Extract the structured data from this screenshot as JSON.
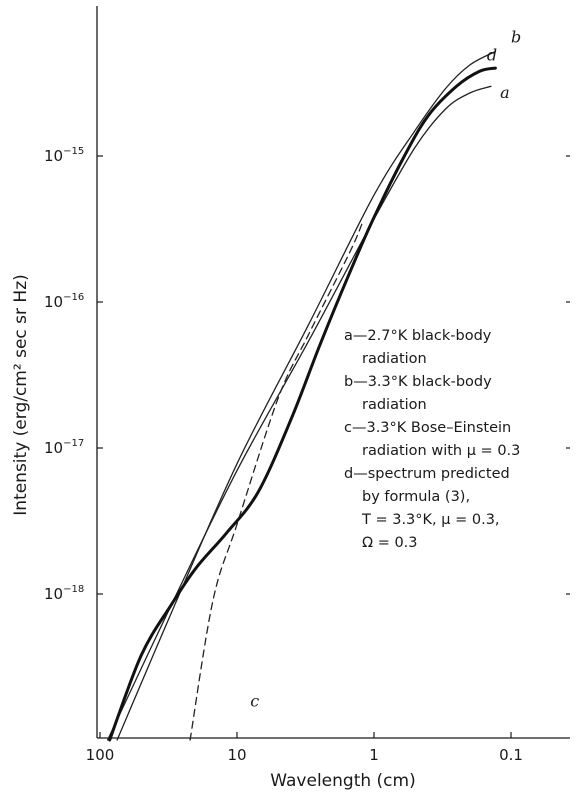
{
  "chart_data": {
    "type": "line",
    "xlabel": "Wavelength  (cm)",
    "ylabel": "Intensity  (erg/cm² sec sr Hz)",
    "x_scale": "log",
    "x_reversed": true,
    "y_scale": "log",
    "xlim": [
      100,
      0.07
    ],
    "ylim": [
      1e-19,
      1e-14
    ],
    "x_ticks": [
      {
        "value": 100,
        "label": "100"
      },
      {
        "value": 10,
        "label": "10"
      },
      {
        "value": 1,
        "label": "1"
      },
      {
        "value": 0.1,
        "label": "0.1"
      }
    ],
    "y_ticks": [
      {
        "value": 1e-15,
        "base": "10",
        "exp": "−15"
      },
      {
        "value": 1e-16,
        "base": "10",
        "exp": "−16"
      },
      {
        "value": 1e-17,
        "base": "10",
        "exp": "−17"
      },
      {
        "value": 1e-18,
        "base": "10",
        "exp": "−18"
      }
    ],
    "grid": false,
    "series": [
      {
        "name": "a",
        "style": "thin",
        "x": [
          88,
          30,
          10,
          3,
          1,
          0.5,
          0.3,
          0.2,
          0.14
        ],
        "y": [
          1e-19,
          8.5e-19,
          7e-18,
          5.4e-17,
          3.7e-16,
          1.15e-15,
          2.1e-15,
          2.7e-15,
          3e-15
        ]
      },
      {
        "name": "b",
        "style": "thin",
        "x": [
          75,
          30,
          10,
          3,
          1,
          0.5,
          0.3,
          0.2,
          0.13
        ],
        "y": [
          1e-19,
          7.5e-19,
          7.8e-18,
          7e-17,
          5.4e-16,
          1.5e-15,
          2.9e-15,
          4.2e-15,
          5.2e-15
        ]
      },
      {
        "name": "c",
        "style": "dashed",
        "x": [
          22,
          15,
          10,
          5,
          3,
          1.5,
          1.2
        ],
        "y": [
          1e-19,
          9e-19,
          3e-18,
          2.2e-17,
          6e-17,
          2.2e-16,
          3.6e-16
        ]
      },
      {
        "name": "d",
        "style": "thick",
        "x": [
          85,
          50,
          30,
          20,
          12,
          7,
          4,
          2.5,
          1.5,
          1,
          0.6,
          0.4,
          0.25,
          0.17,
          0.13
        ],
        "y": [
          1e-19,
          3.8e-19,
          8.5e-19,
          1.5e-18,
          2.6e-18,
          5e-18,
          1.6e-17,
          5e-17,
          1.6e-16,
          3.8e-16,
          1e-15,
          1.9e-15,
          3e-15,
          3.8e-15,
          4e-15
        ]
      }
    ],
    "curve_labels": [
      {
        "text": "a",
        "x": 0.12,
        "y": 2.5e-15
      },
      {
        "text": "b",
        "x": 0.1,
        "y": 6e-15
      },
      {
        "text": "d",
        "x": 0.15,
        "y": 4.5e-15
      },
      {
        "text": "c",
        "x": 8.0,
        "y": 1.7e-19
      }
    ],
    "legend": {
      "placement": "right-middle",
      "lines": [
        {
          "text": "a—2.7°K black-body",
          "indent": false
        },
        {
          "text": "radiation",
          "indent": true
        },
        {
          "text": "b—3.3°K black-body",
          "indent": false
        },
        {
          "text": "radiation",
          "indent": true
        },
        {
          "text": "c—3.3°K Bose–Einstein",
          "indent": false
        },
        {
          "text": "radiation with μ = 0.3",
          "indent": true
        },
        {
          "text": "d—spectrum predicted",
          "indent": false
        },
        {
          "text": "by formula (3),",
          "indent": true
        },
        {
          "text": "T = 3.3°K,  μ = 0.3,",
          "indent": true
        },
        {
          "text": "Ω = 0.3",
          "indent": true
        }
      ]
    }
  }
}
